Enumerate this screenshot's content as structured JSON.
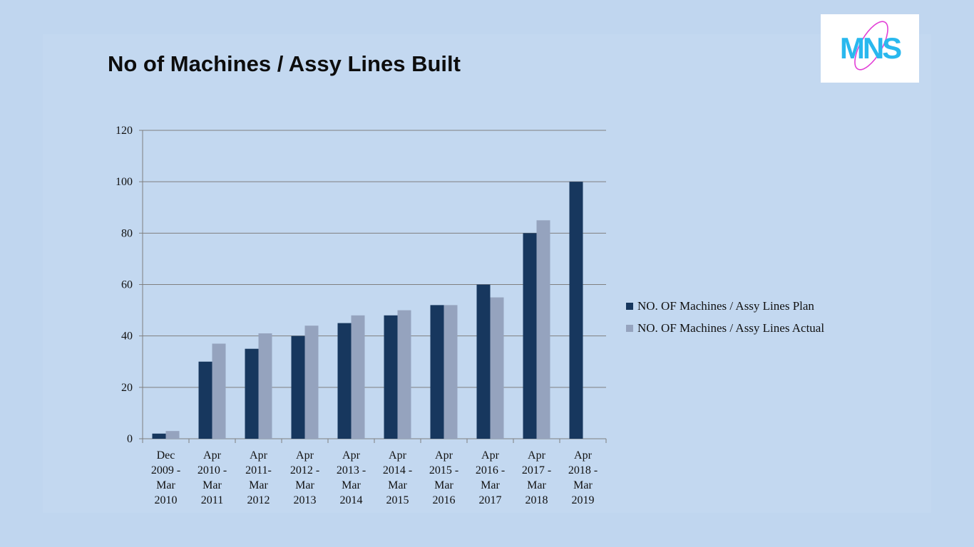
{
  "title": "No of Machines / Assy Lines Built",
  "logo": {
    "text": "MNS"
  },
  "chart_data": {
    "type": "bar",
    "title": "",
    "xlabel": "",
    "ylabel": "",
    "ylim": [
      0,
      120
    ],
    "yticks": [
      0,
      20,
      40,
      60,
      80,
      100,
      120
    ],
    "grid": true,
    "legend_position": "right",
    "categories": [
      [
        "Dec",
        "2009 -",
        "Mar",
        "2010"
      ],
      [
        "Apr",
        "2010 -",
        "Mar",
        "2011"
      ],
      [
        "Apr",
        "2011-",
        "Mar",
        "2012"
      ],
      [
        "Apr",
        "2012 -",
        "Mar",
        "2013"
      ],
      [
        "Apr",
        "2013 -",
        "Mar",
        "2014"
      ],
      [
        "Apr",
        "2014 -",
        "Mar",
        "2015"
      ],
      [
        "Apr",
        "2015 -",
        "Mar",
        "2016"
      ],
      [
        "Apr",
        "2016 -",
        "Mar",
        "2017"
      ],
      [
        "Apr",
        "2017 -",
        "Mar",
        "2018"
      ],
      [
        "Apr",
        "2018 -",
        "Mar",
        "2019"
      ]
    ],
    "series": [
      {
        "name": "NO. OF Machines / Assy Lines Plan",
        "color": "#17375e",
        "values": [
          2,
          30,
          35,
          40,
          45,
          48,
          52,
          60,
          80,
          100
        ]
      },
      {
        "name": "NO. OF Machines / Assy Lines Actual",
        "color": "#95a3be",
        "values": [
          3,
          37,
          41,
          44,
          48,
          50,
          52,
          55,
          85,
          null
        ]
      }
    ]
  }
}
